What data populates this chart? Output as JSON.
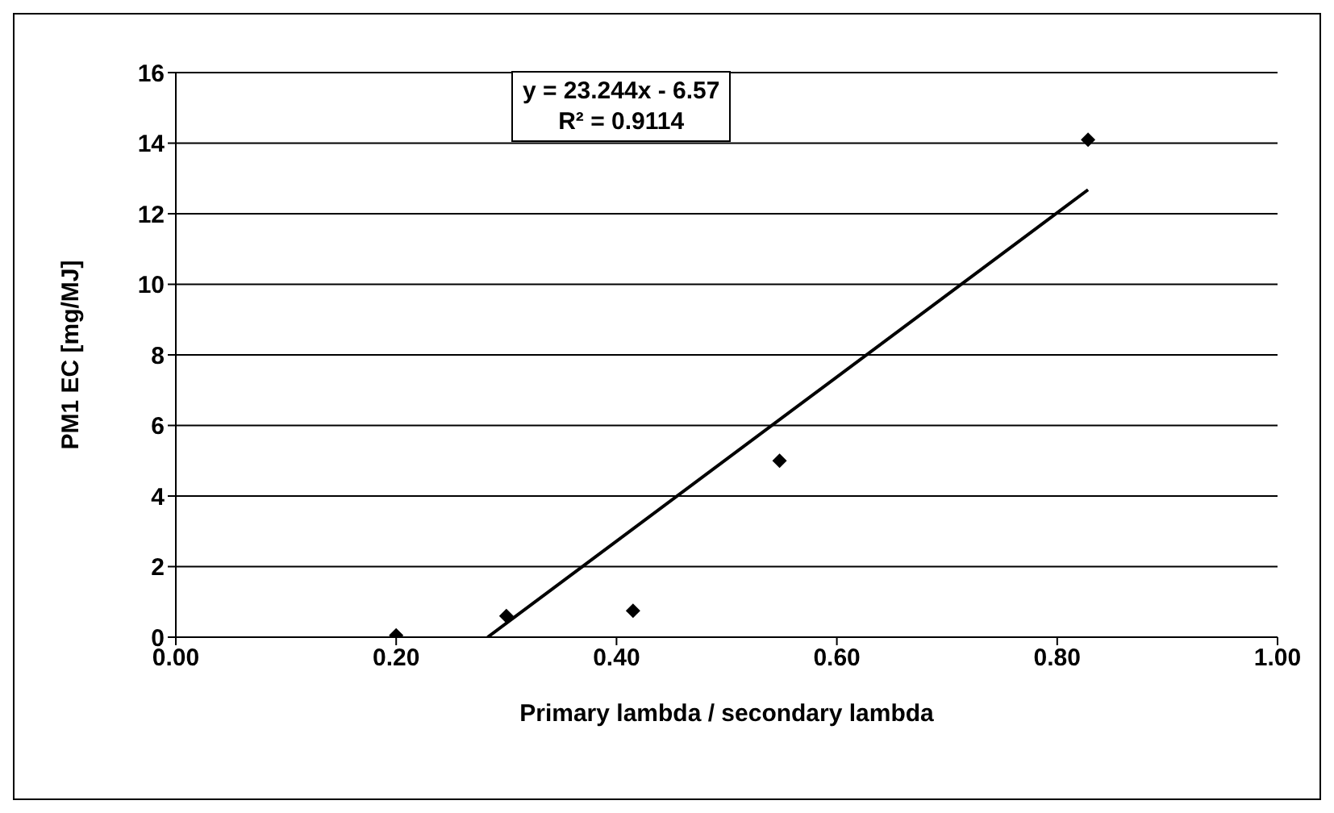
{
  "chart_data": {
    "type": "scatter",
    "xlabel": "Primary lambda / secondary lambda",
    "ylabel": "PM1 EC [mg/MJ]",
    "annotations": [
      "y = 23.244x - 6.57",
      "R² = 0.9114"
    ],
    "xlim": [
      0,
      1
    ],
    "xticks": [
      {
        "value": 0,
        "label": "0.00"
      },
      {
        "value": 0.2,
        "label": "0.20"
      },
      {
        "value": 0.4,
        "label": "0.40"
      },
      {
        "value": 0.6,
        "label": "0.60"
      },
      {
        "value": 0.8,
        "label": "0.80"
      },
      {
        "value": 1,
        "label": "1.00"
      }
    ],
    "ylim": [
      0,
      16
    ],
    "yticks": [
      0,
      2,
      4,
      6,
      8,
      10,
      12,
      14,
      16
    ],
    "grid": "y",
    "legend": false,
    "series": [
      {
        "marker": "diamond",
        "color": "#000000",
        "x": [
          0.2,
          0.3,
          0.415,
          0.548,
          0.828
        ],
        "values": [
          0.05,
          0.6,
          0.75,
          5.0,
          14.1
        ]
      },
      {
        "type": "line",
        "color": "#000000",
        "x": [
          0.283,
          0.828
        ],
        "values": [
          0,
          12.68
        ]
      }
    ]
  }
}
